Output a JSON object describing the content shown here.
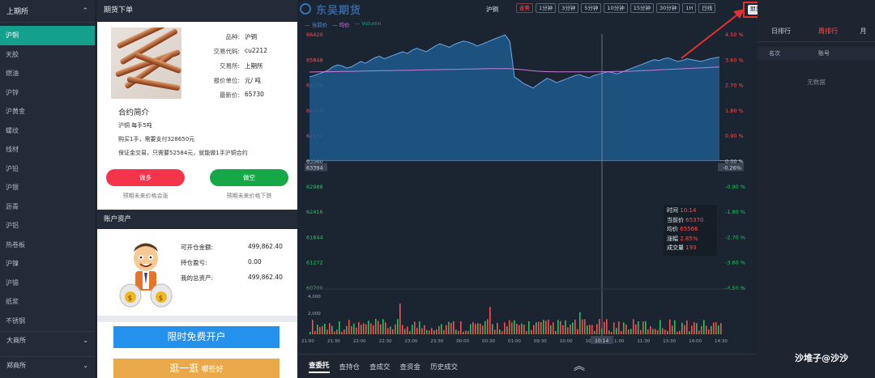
{
  "sidebar": {
    "exchange_top": "上期所",
    "items": [
      "沪铜",
      "天胶",
      "燃油",
      "沪锌",
      "沪黄金",
      "螺纹",
      "线材",
      "沪铅",
      "沪银",
      "沥青",
      "沪铝",
      "热卷板",
      "沪镍",
      "沪锡",
      "纸浆",
      "不锈钢"
    ],
    "active_index": 0,
    "exchange_bottom": [
      "大商所",
      "郑商所"
    ]
  },
  "order_panel": {
    "title": "期货下单",
    "info": [
      {
        "k": "品种:",
        "v": "沪铜"
      },
      {
        "k": "交易代码:",
        "v": "cu2212"
      },
      {
        "k": "交易所:",
        "v": "上期所"
      },
      {
        "k": "报价单位:",
        "v": "元/ 吨"
      },
      {
        "k": "最新价:",
        "v": "65730"
      }
    ],
    "intro_title": "合约简介",
    "intro_lines": [
      "沪铜 每手5吨",
      "购买1手，需要支付328650元",
      "保证金交易，只需要52584元，就能做1手沪铜合约"
    ],
    "buy_label": "做多",
    "sell_label": "做空",
    "buy_hint": "预期未来价格会涨",
    "sell_hint": "预期未来价格下跌",
    "account_title": "账户资产",
    "account": [
      {
        "k": "可开仓金额:",
        "v": "499,862.40"
      },
      {
        "k": "持仓盈亏:",
        "v": "0.00"
      },
      {
        "k": "我的总资产:",
        "v": "499,862.40"
      }
    ],
    "open_account_label": "限时免费开户",
    "stroll_label": "逛一逛",
    "stroll_sub": "哪些好"
  },
  "chart_header": {
    "logo": "东吴期货",
    "symbol": "沪铜",
    "periods": [
      "走势",
      "1分钟",
      "3分钟",
      "5分钟",
      "10分钟",
      "15分钟",
      "30分钟",
      "1H",
      "日线"
    ],
    "active_period": 0,
    "contest_button": "期货大赛",
    "legend": [
      {
        "label": "当前价",
        "color": "#5b8fd6"
      },
      {
        "label": "均价",
        "color": "#c77ad9"
      },
      {
        "label": "Volumn",
        "color": "#13a08c"
      }
    ]
  },
  "chart_data": {
    "type": "area",
    "prev_close": 63560,
    "price_ticks": [
      66420,
      65848,
      65276,
      64704,
      64132,
      63560,
      62988,
      62416,
      61844,
      61272,
      60700
    ],
    "pct_ticks": [
      "4.50 %",
      "3.60 %",
      "2.70 %",
      "1.80 %",
      "0.90 %",
      "0.00 %",
      "-0.90 %",
      "-1.80 %",
      "-2.70 %",
      "-3.60 %",
      "-4.50 %"
    ],
    "crosshair_price": "63394",
    "crosshair_pct": "-0.26%",
    "volume_ticks": [
      "4,000",
      "2,000"
    ],
    "time_labels": [
      "21:00",
      "21:30",
      "22:00",
      "22:30",
      "23:00",
      "23:30",
      "00:00",
      "00:30",
      "01:00",
      "09:30",
      "10:00",
      "10:30",
      "11:00",
      "11:30",
      "13:30",
      "14:00",
      "14:30"
    ],
    "crosshair_time": "10:14",
    "price_series": [
      65450,
      65480,
      65520,
      65560,
      65600,
      65680,
      65720,
      65700,
      65650,
      65680,
      65740,
      65800,
      65760,
      65820,
      65880,
      65920,
      65860,
      65900,
      65940,
      65980,
      66020,
      65980,
      66050,
      66100,
      66060,
      66020,
      66080,
      66150,
      66200,
      66160,
      66120,
      66180,
      66220,
      66260,
      66240,
      66200,
      66150,
      66190,
      66230,
      66280,
      66320,
      66360,
      66400,
      66250,
      65450,
      65380,
      65300,
      65250,
      65200,
      65280,
      65350,
      65420,
      65380,
      65320,
      65360,
      65400,
      65440,
      65480,
      65500,
      65460,
      65430,
      65480,
      65510,
      65540,
      65570,
      65550,
      65520,
      65560,
      65600,
      65640,
      65680,
      65720,
      65760,
      65800,
      65840,
      65820,
      65860,
      65880,
      65840,
      65800,
      65820,
      65860,
      65840,
      65820,
      65800,
      65830,
      65860,
      65880,
      65900
    ],
    "avg_series": [
      65560,
      65562,
      65564,
      65566,
      65568,
      65570,
      65572,
      65574,
      65576,
      65578,
      65580,
      65582,
      65584,
      65586,
      65588,
      65590,
      65592,
      65594,
      65596,
      65598,
      65600,
      65602,
      65604,
      65606,
      65608,
      65610,
      65612,
      65614,
      65616,
      65618,
      65620,
      65622,
      65624,
      65626,
      65628,
      65630,
      65632,
      65634,
      65636,
      65638,
      65640,
      65640,
      65640,
      65640,
      65630,
      65620,
      65610,
      65600,
      65590,
      65580,
      65575,
      65570,
      65568,
      65566,
      65566,
      65566,
      65566,
      65566,
      65566,
      65566,
      65566,
      65566,
      65566,
      65568,
      65570,
      65572,
      65574,
      65576,
      65578,
      65580,
      65585,
      65590,
      65595,
      65600,
      65605,
      65610,
      65615,
      65620,
      65625,
      65630,
      65635,
      65640,
      65645,
      65650,
      65655,
      65660,
      65665,
      65670,
      65675
    ]
  },
  "tooltip": {
    "rows": [
      {
        "k": "时间",
        "v": "10:14"
      },
      {
        "k": "当前价",
        "v": "65370"
      },
      {
        "k": "均价",
        "v": "65566"
      },
      {
        "k": "涨幅",
        "v": "2.85%"
      },
      {
        "k": "成交量",
        "v": "193"
      }
    ]
  },
  "bottom_tabs": [
    "查委托",
    "查持仓",
    "查成交",
    "查资金",
    "历史成交"
  ],
  "ranking": {
    "tabs": [
      "日排行",
      "周排行",
      "月"
    ],
    "active_tab": 1,
    "headers": [
      "名次",
      "账号"
    ],
    "empty_text": "无数据"
  },
  "watermark": "沙堆子@沙沙"
}
